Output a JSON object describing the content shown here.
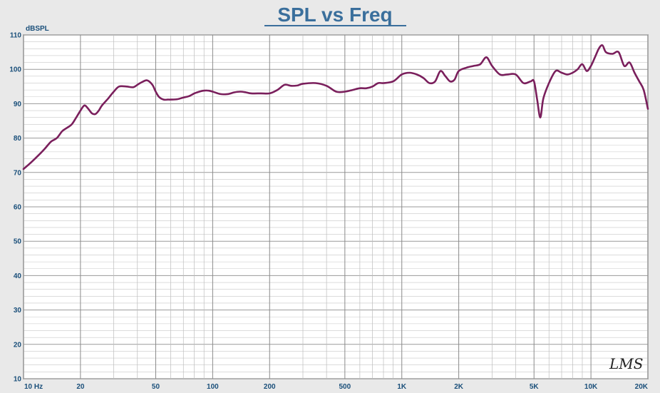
{
  "chart_data": {
    "type": "line",
    "title": "SPL vs Freq",
    "ylabel": "dBSPL",
    "xlabel": "",
    "x_scale": "log",
    "xlim": [
      10,
      20000
    ],
    "ylim": [
      10,
      110
    ],
    "grid": true,
    "x_tick_values": [
      10,
      20,
      50,
      100,
      200,
      500,
      1000,
      2000,
      5000,
      10000,
      20000
    ],
    "x_tick_labels": [
      "10  Hz",
      "20",
      "50",
      "100",
      "200",
      "500",
      "1K",
      "2K",
      "5K",
      "10K",
      "20K"
    ],
    "y_ticks": [
      10,
      20,
      30,
      40,
      50,
      60,
      70,
      80,
      90,
      100,
      110
    ],
    "series": [
      {
        "color": "#7a1f5c",
        "x": [
          10,
          11,
          12,
          13,
          14,
          15,
          16,
          17,
          18,
          19,
          20,
          21,
          22,
          23,
          24,
          25,
          26,
          28,
          30,
          32,
          35,
          38,
          40,
          42,
          45,
          48,
          50,
          52,
          55,
          58,
          60,
          65,
          70,
          75,
          80,
          85,
          90,
          95,
          100,
          110,
          120,
          130,
          140,
          150,
          160,
          180,
          200,
          220,
          240,
          260,
          280,
          300,
          350,
          400,
          450,
          500,
          550,
          600,
          650,
          700,
          750,
          800,
          900,
          1000,
          1100,
          1200,
          1300,
          1400,
          1500,
          1600,
          1700,
          1800,
          1900,
          2000,
          2200,
          2400,
          2600,
          2800,
          3000,
          3300,
          3600,
          4000,
          4400,
          4800,
          5000,
          5200,
          5400,
          5600,
          6000,
          6500,
          7000,
          7500,
          8000,
          8500,
          9000,
          9500,
          10000,
          10500,
          11000,
          11500,
          12000,
          13000,
          14000,
          15000,
          16000,
          17000,
          18000,
          19000,
          20000
        ],
        "y": [
          71,
          73,
          75,
          77,
          79,
          80,
          82,
          83,
          84,
          86,
          88,
          89.5,
          88.5,
          87.2,
          87,
          88,
          89.5,
          91.5,
          93.5,
          95,
          95,
          94.8,
          95.5,
          96.2,
          96.8,
          95.5,
          93.5,
          92,
          91.2,
          91.2,
          91.2,
          91.3,
          91.8,
          92.2,
          93,
          93.5,
          93.8,
          93.8,
          93.5,
          92.8,
          92.8,
          93.3,
          93.5,
          93.3,
          93,
          93,
          93,
          94,
          95.5,
          95.2,
          95.3,
          95.8,
          96,
          95.2,
          93.5,
          93.5,
          94,
          94.5,
          94.5,
          95,
          96,
          96,
          96.5,
          98.5,
          99,
          98.5,
          97.5,
          96,
          96.5,
          99.5,
          98,
          96.5,
          97,
          99.5,
          100.5,
          101,
          101.5,
          103.5,
          101,
          98.5,
          98.5,
          98.5,
          96,
          96.5,
          96.5,
          91,
          86,
          91.5,
          96,
          99.5,
          99,
          98.5,
          99,
          100,
          101.5,
          99.5,
          101,
          103.5,
          106,
          107,
          105,
          104.5,
          105,
          101,
          102,
          99,
          96.5,
          94,
          88.5
        ]
      }
    ]
  },
  "logo": {
    "text": "LMS"
  }
}
